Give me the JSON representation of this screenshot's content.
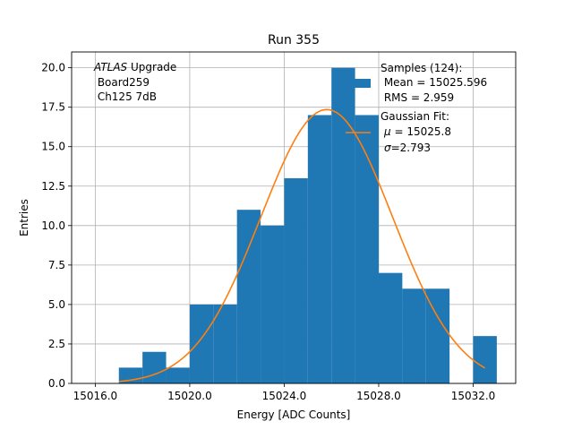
{
  "chart_data": {
    "type": "bar",
    "title": "Run 355",
    "xlabel": "Energy [ADC Counts]",
    "ylabel": "Entries",
    "xlim": [
      15015.0,
      15033.8
    ],
    "ylim": [
      0.0,
      21.0
    ],
    "xticks": [
      15016.0,
      15020.0,
      15024.0,
      15028.0,
      15032.0
    ],
    "xtick_labels": [
      "15016.0",
      "15020.0",
      "15024.0",
      "15028.0",
      "15032.0"
    ],
    "yticks": [
      0.0,
      2.5,
      5.0,
      7.5,
      10.0,
      12.5,
      15.0,
      17.5,
      20.0
    ],
    "ytick_labels": [
      "0.0",
      "2.5",
      "5.0",
      "7.5",
      "10.0",
      "12.5",
      "15.0",
      "17.5",
      "20.0"
    ],
    "grid": true,
    "histogram": {
      "name": "Samples",
      "color": "#1f77b4",
      "bin_edges": [
        15017.0,
        15018.0,
        15019.0,
        15020.0,
        15021.0,
        15022.0,
        15023.0,
        15024.0,
        15025.0,
        15026.0,
        15027.0,
        15028.0,
        15029.0,
        15030.0,
        15031.0,
        15032.0,
        15033.0
      ],
      "counts": [
        1,
        2,
        1,
        5,
        5,
        11,
        10,
        13,
        17,
        20,
        17,
        7,
        6,
        6,
        0,
        3
      ]
    },
    "fit": {
      "name": "Gaussian Fit",
      "color": "#ff7f0e",
      "mu": 15025.8,
      "sigma": 2.793,
      "amplitude": 17.35,
      "x_range": [
        15017.0,
        15032.5
      ]
    },
    "annotation_lines": [
      "ATLAS",
      " Upgrade",
      " Board259",
      " Ch125 7dB"
    ],
    "legend": {
      "position": "top-right",
      "samples_lines": [
        "Samples (124):",
        " Mean = 15025.596",
        " RMS = 2.959"
      ],
      "fit_lines": [
        "Gaussian Fit:",
        "μ",
        " = 15025.8",
        "σ",
        "=2.793"
      ]
    }
  }
}
